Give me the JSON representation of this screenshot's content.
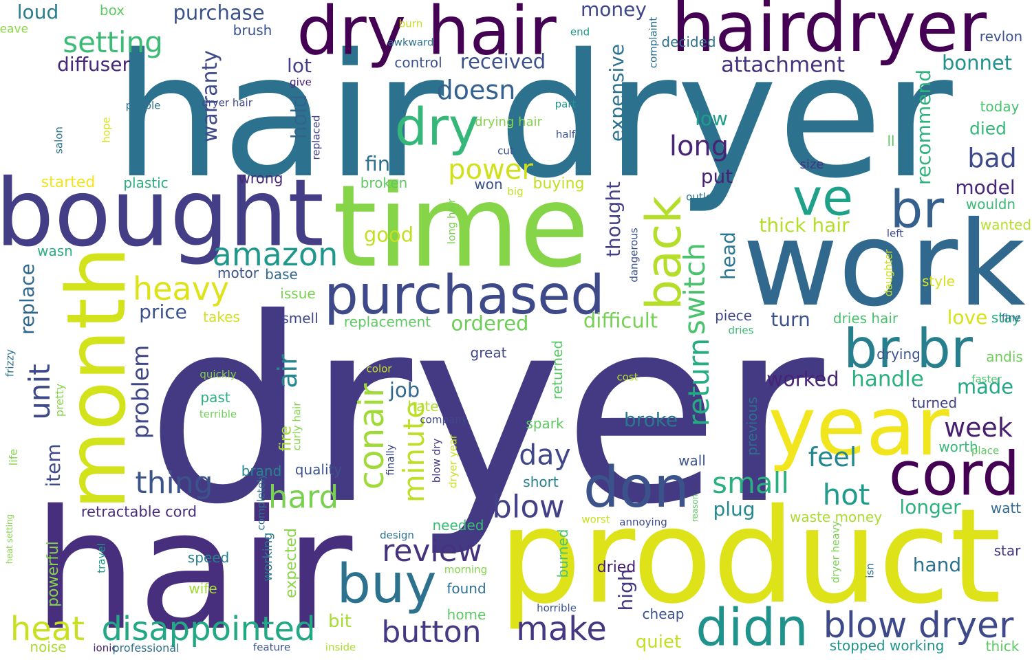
{
  "words": [
    {
      "text": "dryer",
      "color": "#443983"
    },
    {
      "text": "hair dryer",
      "color": "#2c728e"
    },
    {
      "text": "hair",
      "color": "#472f7d"
    },
    {
      "text": "product",
      "color": "#dde318"
    },
    {
      "text": "time",
      "color": "#86d549"
    },
    {
      "text": "work",
      "color": "#31688e"
    },
    {
      "text": "bought",
      "color": "#433e85"
    },
    {
      "text": "hairdryer",
      "color": "#440154"
    },
    {
      "text": "dry hair",
      "color": "#440154"
    },
    {
      "text": "month",
      "color": "#d2e21b"
    },
    {
      "text": "year",
      "color": "#f1e51d"
    },
    {
      "text": "purchased",
      "color": "#3e4989"
    },
    {
      "text": "don",
      "color": "#3b528b"
    },
    {
      "text": "cord",
      "color": "#440154"
    },
    {
      "text": "didn",
      "color": "#20928c"
    },
    {
      "text": "br br",
      "color": "#277f8e"
    },
    {
      "text": "buy",
      "color": "#2c728e"
    },
    {
      "text": "ve",
      "color": "#1fa088"
    },
    {
      "text": "br",
      "color": "#355f8d"
    },
    {
      "text": "back",
      "color": "#b5de2b"
    },
    {
      "text": "dry",
      "color": "#35b779"
    },
    {
      "text": "blow dryer",
      "color": "#3e4989"
    },
    {
      "text": "disappointed",
      "color": "#22a884"
    },
    {
      "text": "heat",
      "color": "#c8e020"
    },
    {
      "text": "conair",
      "color": "#a0da39"
    },
    {
      "text": "make",
      "color": "#453781"
    },
    {
      "text": "button",
      "color": "#443983"
    },
    {
      "text": "review",
      "color": "#46337e"
    },
    {
      "text": "amazon",
      "color": "#1f988b"
    },
    {
      "text": "heavy",
      "color": "#dde318"
    },
    {
      "text": "thing",
      "color": "#3b528b"
    },
    {
      "text": "hard",
      "color": "#7ad151"
    },
    {
      "text": "blow",
      "color": "#424086"
    },
    {
      "text": "small",
      "color": "#2ab07f"
    },
    {
      "text": "hot",
      "color": "#1e9b8a"
    },
    {
      "text": "feel",
      "color": "#24868e"
    },
    {
      "text": "day",
      "color": "#3f4788"
    },
    {
      "text": "minute",
      "color": "#bddf26"
    },
    {
      "text": "return",
      "color": "#25ab82"
    },
    {
      "text": "switch",
      "color": "#4ac16d"
    },
    {
      "text": "unit",
      "color": "#3e4989"
    },
    {
      "text": "setting",
      "color": "#3bbb75"
    },
    {
      "text": "long",
      "color": "#482475"
    },
    {
      "text": "power",
      "color": "#d0e11c"
    },
    {
      "text": "doesn",
      "color": "#34618d"
    },
    {
      "text": "air",
      "color": "#24868e"
    },
    {
      "text": "week",
      "color": "#481f70"
    },
    {
      "text": "handle",
      "color": "#2ab07f"
    },
    {
      "text": "worked",
      "color": "#482475"
    },
    {
      "text": "made",
      "color": "#22a884"
    },
    {
      "text": "bad",
      "color": "#3e4989"
    },
    {
      "text": "model",
      "color": "#482677"
    },
    {
      "text": "warranty",
      "color": "#3e4989"
    },
    {
      "text": "problem",
      "color": "#3f4788"
    },
    {
      "text": "attachment",
      "color": "#46337e"
    },
    {
      "text": "bonnet",
      "color": "#21918c"
    },
    {
      "text": "received",
      "color": "#3b528b"
    },
    {
      "text": "purchase",
      "color": "#3b528b"
    },
    {
      "text": "diffuser",
      "color": "#482878"
    },
    {
      "text": "loud",
      "color": "#287d8e"
    },
    {
      "text": "money",
      "color": "#3f4788"
    },
    {
      "text": "lot",
      "color": "#424086"
    },
    {
      "text": "hold",
      "color": "#33638d"
    },
    {
      "text": "find",
      "color": "#2d708e"
    },
    {
      "text": "good",
      "color": "#c2df23"
    },
    {
      "text": "price",
      "color": "#3b528b"
    },
    {
      "text": "replace",
      "color": "#30698e"
    },
    {
      "text": "item",
      "color": "#3e4a89"
    },
    {
      "text": "job",
      "color": "#31688e"
    },
    {
      "text": "ordered",
      "color": "#6ece58"
    },
    {
      "text": "difficult",
      "color": "#75d054"
    },
    {
      "text": "turn",
      "color": "#3b528b"
    },
    {
      "text": "love",
      "color": "#d8e219"
    },
    {
      "text": "longer",
      "color": "#2db27d"
    },
    {
      "text": "plug",
      "color": "#23898e"
    },
    {
      "text": "broke",
      "color": "#2a768e"
    },
    {
      "text": "thick hair",
      "color": "#b5de2b"
    },
    {
      "text": "put",
      "color": "#482173"
    },
    {
      "text": "low",
      "color": "#1f9e89"
    },
    {
      "text": "thought",
      "color": "#433e85"
    },
    {
      "text": "expensive",
      "color": "#2c728e"
    },
    {
      "text": "recommend",
      "color": "#2eb37c"
    },
    {
      "text": "died",
      "color": "#35b779"
    },
    {
      "text": "head",
      "color": "#2a768e"
    },
    {
      "text": "high",
      "color": "#443983"
    },
    {
      "text": "retractable cord",
      "color": "#472c7a"
    },
    {
      "text": "stopped working",
      "color": "#21918c"
    },
    {
      "text": "waste money",
      "color": "#addc30"
    },
    {
      "text": "started",
      "color": "#f1e51d"
    },
    {
      "text": "plastic",
      "color": "#2ab07f"
    },
    {
      "text": "wrong",
      "color": "#482878"
    },
    {
      "text": "buying",
      "color": "#c2df23"
    },
    {
      "text": "won",
      "color": "#3b528b"
    },
    {
      "text": "broken",
      "color": "#5ec962"
    },
    {
      "text": "fire",
      "color": "#a2da37"
    },
    {
      "text": "past",
      "color": "#2ab07f"
    },
    {
      "text": "quality",
      "color": "#3b528b"
    },
    {
      "text": "brand",
      "color": "#24868e"
    },
    {
      "text": "expected",
      "color": "#8bd646"
    },
    {
      "text": "working",
      "color": "#287d8e"
    },
    {
      "text": "speed",
      "color": "#277f8e"
    },
    {
      "text": "wife",
      "color": "#a0da39"
    },
    {
      "text": "powerful",
      "color": "#84d44b"
    },
    {
      "text": "bit",
      "color": "#a8db34"
    },
    {
      "text": "found",
      "color": "#2d708e"
    },
    {
      "text": "home",
      "color": "#5ec962"
    },
    {
      "text": "hand",
      "color": "#2c728e"
    },
    {
      "text": "dried",
      "color": "#481f70"
    },
    {
      "text": "quiet",
      "color": "#c0df25"
    },
    {
      "text": "cheap",
      "color": "#3b528b"
    },
    {
      "text": "burned",
      "color": "#4ac16d"
    },
    {
      "text": "needed",
      "color": "#3bbb75"
    },
    {
      "text": "short",
      "color": "#277f8e"
    },
    {
      "text": "spark",
      "color": "#5ec962"
    },
    {
      "text": "returned",
      "color": "#58c765"
    },
    {
      "text": "hate",
      "color": "#b2dd2d"
    },
    {
      "text": "great",
      "color": "#3f4788"
    },
    {
      "text": "replacement",
      "color": "#5ec962"
    },
    {
      "text": "smell",
      "color": "#3f4788"
    },
    {
      "text": "issue",
      "color": "#7ad151"
    },
    {
      "text": "motor",
      "color": "#3b528b"
    },
    {
      "text": "base",
      "color": "#31688e"
    },
    {
      "text": "takes",
      "color": "#d2e21b"
    },
    {
      "text": "wasn",
      "color": "#2ab07f"
    },
    {
      "text": "piece",
      "color": "#3f4788"
    },
    {
      "text": "dries hair",
      "color": "#4ac16d"
    },
    {
      "text": "drying",
      "color": "#3b528b"
    },
    {
      "text": "turned",
      "color": "#424086"
    },
    {
      "text": "worth",
      "color": "#37b878"
    },
    {
      "text": "previous",
      "color": "#2d708e"
    },
    {
      "text": "wall",
      "color": "#3b528b"
    },
    {
      "text": "star",
      "color": "#453781"
    },
    {
      "text": "watt",
      "color": "#31688e"
    },
    {
      "text": "thick",
      "color": "#5ec962"
    },
    {
      "text": "andis",
      "color": "#6ece58"
    },
    {
      "text": "style",
      "color": "#d8e219"
    },
    {
      "text": "stay",
      "color": "#26ad81"
    },
    {
      "text": "wanted",
      "color": "#b5de2b"
    },
    {
      "text": "wouldn",
      "color": "#3bbb75"
    },
    {
      "text": "today",
      "color": "#48c16e"
    },
    {
      "text": "revlon",
      "color": "#3b528b"
    },
    {
      "text": "ll",
      "color": "#5ec962"
    },
    {
      "text": "size",
      "color": "#46337e"
    },
    {
      "text": "outlet",
      "color": "#2c728e"
    },
    {
      "text": "left",
      "color": "#3e4989"
    },
    {
      "text": "fine",
      "color": "#31688e"
    },
    {
      "text": "dries",
      "color": "#3bbb75"
    },
    {
      "text": "faster",
      "color": "#4ac16d"
    },
    {
      "text": "place",
      "color": "#5ec962"
    },
    {
      "text": "decided",
      "color": "#2d708e"
    },
    {
      "text": "end",
      "color": "#1f988b"
    },
    {
      "text": "control",
      "color": "#3b528b"
    },
    {
      "text": "brush",
      "color": "#3b528b"
    },
    {
      "text": "box",
      "color": "#5ec962"
    },
    {
      "text": "leave",
      "color": "#8bd646"
    },
    {
      "text": "burn",
      "color": "#c8e020"
    },
    {
      "text": "awkward",
      "color": "#2d708e"
    },
    {
      "text": "give",
      "color": "#482475"
    },
    {
      "text": "dryer hair",
      "color": "#3e4989"
    },
    {
      "text": "people",
      "color": "#2c728e"
    },
    {
      "text": "salon",
      "color": "#2c728e"
    },
    {
      "text": "hope",
      "color": "#d8e219"
    },
    {
      "text": "part",
      "color": "#20928c"
    },
    {
      "text": "half",
      "color": "#3b528b"
    },
    {
      "text": "cut",
      "color": "#3b528b"
    },
    {
      "text": "big",
      "color": "#c2df23"
    },
    {
      "text": "drying hair",
      "color": "#84d44b"
    },
    {
      "text": "replaced",
      "color": "#424086"
    },
    {
      "text": "long hair",
      "color": "#7ad151"
    },
    {
      "text": "dangerous",
      "color": "#3b528b"
    },
    {
      "text": "daughter",
      "color": "#c8e020"
    },
    {
      "text": "complaint",
      "color": "#2d708e"
    },
    {
      "text": "frizzy",
      "color": "#2d708e"
    },
    {
      "text": "pretty",
      "color": "#84d44b"
    },
    {
      "text": "quickly",
      "color": "#84d44b"
    },
    {
      "text": "terrible",
      "color": "#6ece58"
    },
    {
      "text": "color",
      "color": "#c8e020"
    },
    {
      "text": "cost",
      "color": "#b5de2b"
    },
    {
      "text": "company",
      "color": "#3e4989"
    },
    {
      "text": "curly hair",
      "color": "#84d44b"
    },
    {
      "text": "finally",
      "color": "#3e4989"
    },
    {
      "text": "blow dry",
      "color": "#453781"
    },
    {
      "text": "dryer year",
      "color": "#c8e020"
    },
    {
      "text": "life",
      "color": "#84d44b"
    },
    {
      "text": "completely",
      "color": "#2d708e"
    },
    {
      "text": "heat setting",
      "color": "#84d44b"
    },
    {
      "text": "travel",
      "color": "#1f988b"
    },
    {
      "text": "design",
      "color": "#2d708e"
    },
    {
      "text": "morning",
      "color": "#84d44b"
    },
    {
      "text": "reason",
      "color": "#5ec962"
    },
    {
      "text": "worst",
      "color": "#c8e020"
    },
    {
      "text": "annoying",
      "color": "#3e4989"
    },
    {
      "text": "dryer heavy",
      "color": "#7ad151"
    },
    {
      "text": "isn",
      "color": "#2c728e"
    },
    {
      "text": "horrible",
      "color": "#3b528b"
    },
    {
      "text": "noise",
      "color": "#addc30"
    },
    {
      "text": "ionic",
      "color": "#482475"
    },
    {
      "text": "professional",
      "color": "#2d708e"
    },
    {
      "text": "feature",
      "color": "#3b528b"
    },
    {
      "text": "inside",
      "color": "#addc30"
    }
  ]
}
